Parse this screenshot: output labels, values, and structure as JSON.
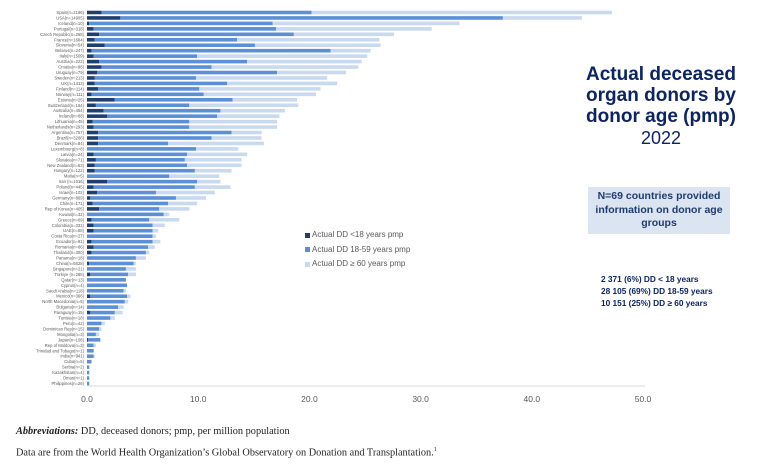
{
  "colors": {
    "under18": "#1f3f70",
    "age18_59": "#5b8fd6",
    "age60plus": "#c9d9f0",
    "title": "#0c2461",
    "axis": "#d9d9d9"
  },
  "title": {
    "main": "Actual deceased\norgan donors by\ndonor age (pmp)",
    "year": "2022"
  },
  "info_box": "N=69 countries provided information on donor age groups",
  "stats": [
    "2 371 (6%) DD < 18 years",
    "28 105 (69%) DD 18-59 years",
    "10 151 (25%) DD ≥ 60 years"
  ],
  "footnote": {
    "abbrev_label": "Abbreviations:",
    "abbrev_text": " DD, deceased donors; pmp, per million population",
    "source": "Data are from the World Health Organization’s Global Observatory on Donation and Transplantation.",
    "source_sup": "1"
  },
  "chart_data": {
    "type": "bar",
    "orientation": "horizontal",
    "stacked": true,
    "title": "Actual deceased organ donors by donor age (pmp) 2022",
    "xlabel": "",
    "ylabel": "",
    "xlim": [
      0,
      50
    ],
    "x_ticks": [
      "0.0",
      "10.0",
      "20.0",
      "30.0",
      "40.0",
      "50.0"
    ],
    "grid": false,
    "legend_position": "center",
    "categories": [
      "Spain(n=2196)",
      "USA(n=14905)",
      "Iceland(n=10)",
      "Portugal(n=318)",
      "Czech Republic(n=268)",
      "France(n=1684)",
      "Slovenia(n=54)",
      "Belarus(n=247)",
      "Italy(n=1509)",
      "Austria(n=222)",
      "Croatia(n=98)",
      "Uruguay(n=79)",
      "Sweden(n=213)",
      "UK(n=1413)",
      "Finland(n=114)",
      "Norway(n=111)",
      "Estonia(n=25)",
      "Switzerland(n=164)",
      "Australia(n=454)",
      "Ireland(n=88)",
      "Lithuania(n=45)",
      "Netherlands(n=293)",
      "Argentina(n=757)",
      "Brazil(n=3266)",
      "Denmark(n=84)",
      "Luxembourg(n=8)",
      "Latvia(n=24)",
      "Slovakia(n=71)",
      "New Zealand(n=63)",
      "Hungary(n=122)",
      "Malta(n=5)",
      "Iran (n=1016)",
      "Poland(n=445)",
      "Israel(n=102)",
      "Germany(n=869)",
      "Chile(n=171)",
      "Rep of Korea(n=405)",
      "Kuwait(n=32)",
      "Greece(n=69)",
      "Colombia(n=332)",
      "UAE(n=58)",
      "Costa Rica(n=27)",
      "Ecuador(n=91)",
      "Romania(n=86)",
      "Thailand(n=300)",
      "Panama(n=18)",
      "China(n=5628)",
      "Singapore(n=21)",
      "Türkiye (n=288)",
      "Qatar(n=13)",
      "Cyprus(n=4)",
      "Saudi Arabia(n=118)",
      "Mexico(n=366)",
      "North Macedonia(n=5)",
      "Bulgaria(n=14)",
      "Paraguay(n=15)",
      "Tunisia(n=18)",
      "Peru(n=42)",
      "Dominican Rep(n=15)",
      "Mongolia(n=3)",
      "Japan(n=108)",
      "Rep of Moldova(n=3)",
      "Trinidad and Tobago(n=1)",
      "India(n=941)",
      "Cuba(n=5)",
      "Serbia(n=2)",
      "Kazakhstan(n=4)",
      "Oman(n=1)",
      "Philippines(n=26)"
    ],
    "series": [
      {
        "name": "Actual DD <18 years pmp",
        "values": [
          1.3,
          3.0,
          0.2,
          0.6,
          1.1,
          0.7,
          1.6,
          0.4,
          0.6,
          1.1,
          1.3,
          0.9,
          0.7,
          0.7,
          1.0,
          0.4,
          2.5,
          0.8,
          1.5,
          1.8,
          0.5,
          0.6,
          1.0,
          1.0,
          1.0,
          0.0,
          0.6,
          0.8,
          0.7,
          0.7,
          0.0,
          1.8,
          0.6,
          0.9,
          0.3,
          0.5,
          1.1,
          0.0,
          0.4,
          0.6,
          0.6,
          0.0,
          0.4,
          0.6,
          0.4,
          0.0,
          0.2,
          0.0,
          0.3,
          0.0,
          0.0,
          0.0,
          0.3,
          0.0,
          0.0,
          0.3,
          0.0,
          0.0,
          0.0,
          0.0,
          0.1,
          0.0,
          0.0,
          0.0,
          0.0,
          0.0,
          0.0,
          0.0,
          0.0
        ]
      },
      {
        "name": "Actual DD 18-59 years pmp",
        "values": [
          18.9,
          34.4,
          16.5,
          16.4,
          17.5,
          12.8,
          13.5,
          21.5,
          9.3,
          13.3,
          9.9,
          16.2,
          9.1,
          11.9,
          9.1,
          10.1,
          10.6,
          8.4,
          10.5,
          9.9,
          8.7,
          8.6,
          12.0,
          10.2,
          6.3,
          9.8,
          8.4,
          8.0,
          8.3,
          9.0,
          7.4,
          8.1,
          9.1,
          5.3,
          7.7,
          6.8,
          5.4,
          6.9,
          5.2,
          5.3,
          5.3,
          5.9,
          5.5,
          4.9,
          4.9,
          4.4,
          4.0,
          3.5,
          3.4,
          3.5,
          3.6,
          3.3,
          3.3,
          3.4,
          2.8,
          2.2,
          2.1,
          1.3,
          1.1,
          0.8,
          1.1,
          0.6,
          0.6,
          0.6,
          0.4,
          0.2,
          0.2,
          0.2,
          0.2
        ]
      },
      {
        "name": "Actual DD ≥ 60 years pmp",
        "values": [
          27.0,
          7.1,
          16.8,
          14.0,
          9.0,
          12.8,
          11.3,
          3.6,
          15.3,
          10.3,
          13.2,
          6.2,
          11.8,
          9.9,
          10.9,
          10.1,
          5.8,
          9.8,
          5.8,
          5.6,
          7.9,
          7.9,
          2.7,
          4.5,
          8.6,
          3.8,
          5.4,
          5.1,
          4.9,
          3.3,
          4.5,
          2.1,
          3.2,
          5.3,
          2.7,
          2.6,
          2.7,
          0.5,
          2.7,
          1.1,
          0.5,
          0.3,
          0.7,
          0.6,
          0.3,
          0.9,
          0.2,
          0.9,
          0.7,
          0.0,
          0.0,
          0.2,
          0.3,
          0.3,
          0.5,
          0.7,
          0.4,
          0.3,
          0.2,
          0.3,
          0.0,
          0.2,
          0.0,
          0.1,
          0.0,
          0.0,
          0.0,
          0.0,
          0.0
        ]
      }
    ]
  }
}
